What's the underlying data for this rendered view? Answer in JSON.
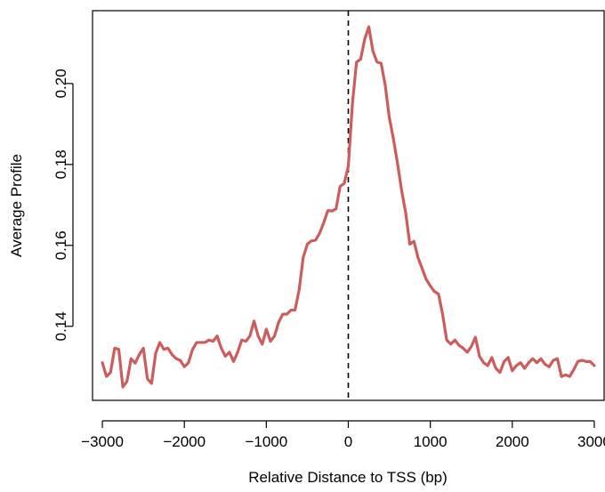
{
  "chart_data": {
    "type": "line",
    "title": "",
    "xlabel": "Relative Distance to TSS (bp)",
    "ylabel": "Average Profile",
    "xlim": [
      -3120,
      3120
    ],
    "ylim": [
      0.1217,
      0.218
    ],
    "x_ticks": [
      -3000,
      -2000,
      -1000,
      0,
      1000,
      2000,
      3000
    ],
    "x_tick_labels": [
      "−3000",
      "−2000",
      "−1000",
      "0",
      "1000",
      "2000",
      "3000"
    ],
    "y_ticks": [
      0.14,
      0.16,
      0.18,
      0.2
    ],
    "y_tick_labels": [
      "0.14",
      "0.16",
      "0.18",
      "0.20"
    ],
    "grid": false,
    "legend": "none",
    "reference_line": {
      "x": 0,
      "style": "dashed",
      "color": "#000000"
    },
    "series": [
      {
        "color": "#cd5c5c",
        "x": [
          -3000,
          -2950,
          -2900,
          -2850,
          -2800,
          -2750,
          -2700,
          -2650,
          -2600,
          -2550,
          -2500,
          -2450,
          -2400,
          -2350,
          -2300,
          -2250,
          -2200,
          -2150,
          -2100,
          -2050,
          -2000,
          -1950,
          -1900,
          -1850,
          -1800,
          -1750,
          -1700,
          -1650,
          -1600,
          -1550,
          -1500,
          -1450,
          -1400,
          -1350,
          -1300,
          -1250,
          -1200,
          -1150,
          -1100,
          -1050,
          -1000,
          -950,
          -900,
          -850,
          -800,
          -750,
          -700,
          -650,
          -600,
          -550,
          -500,
          -450,
          -400,
          -350,
          -300,
          -250,
          -200,
          -150,
          -100,
          -50,
          0,
          50,
          100,
          150,
          200,
          250,
          300,
          350,
          400,
          450,
          500,
          550,
          600,
          650,
          700,
          750,
          800,
          850,
          900,
          950,
          1000,
          1050,
          1100,
          1150,
          1200,
          1250,
          1300,
          1350,
          1400,
          1450,
          1500,
          1550,
          1600,
          1650,
          1700,
          1750,
          1800,
          1850,
          1900,
          1950,
          2000,
          2050,
          2100,
          2150,
          2200,
          2250,
          2300,
          2350,
          2400,
          2450,
          2500,
          2550,
          2600,
          2650,
          2700,
          2750,
          2800,
          2850,
          2900,
          2950,
          3000
        ],
        "y": [
          0.131,
          0.1276,
          0.1286,
          0.1346,
          0.1343,
          0.125,
          0.1264,
          0.132,
          0.1309,
          0.133,
          0.1346,
          0.127,
          0.1259,
          0.1333,
          0.136,
          0.1343,
          0.1346,
          0.133,
          0.132,
          0.1316,
          0.13,
          0.131,
          0.1343,
          0.136,
          0.136,
          0.136,
          0.1366,
          0.1363,
          0.1376,
          0.1346,
          0.1326,
          0.1336,
          0.1313,
          0.1336,
          0.1366,
          0.1363,
          0.1376,
          0.1413,
          0.1376,
          0.1356,
          0.1393,
          0.1363,
          0.1376,
          0.141,
          0.143,
          0.143,
          0.144,
          0.144,
          0.149,
          0.157,
          0.1603,
          0.1611,
          0.1613,
          0.163,
          0.1656,
          0.1686,
          0.1685,
          0.169,
          0.1746,
          0.1753,
          0.1796,
          0.195,
          0.2053,
          0.206,
          0.211,
          0.214,
          0.208,
          0.2053,
          0.205,
          0.1996,
          0.1916,
          0.1863,
          0.1803,
          0.1736,
          0.168,
          0.1603,
          0.161,
          0.157,
          0.1543,
          0.1516,
          0.15,
          0.1486,
          0.148,
          0.143,
          0.1366,
          0.1356,
          0.1366,
          0.1353,
          0.1346,
          0.1336,
          0.135,
          0.1373,
          0.1326,
          0.131,
          0.1303,
          0.1323,
          0.1296,
          0.1286,
          0.1313,
          0.1323,
          0.129,
          0.1303,
          0.131,
          0.1296,
          0.131,
          0.132,
          0.131,
          0.132,
          0.1306,
          0.13,
          0.1316,
          0.132,
          0.1276,
          0.128,
          0.1276,
          0.1293,
          0.1313,
          0.1316,
          0.1313,
          0.1313,
          0.1303
        ]
      }
    ]
  }
}
